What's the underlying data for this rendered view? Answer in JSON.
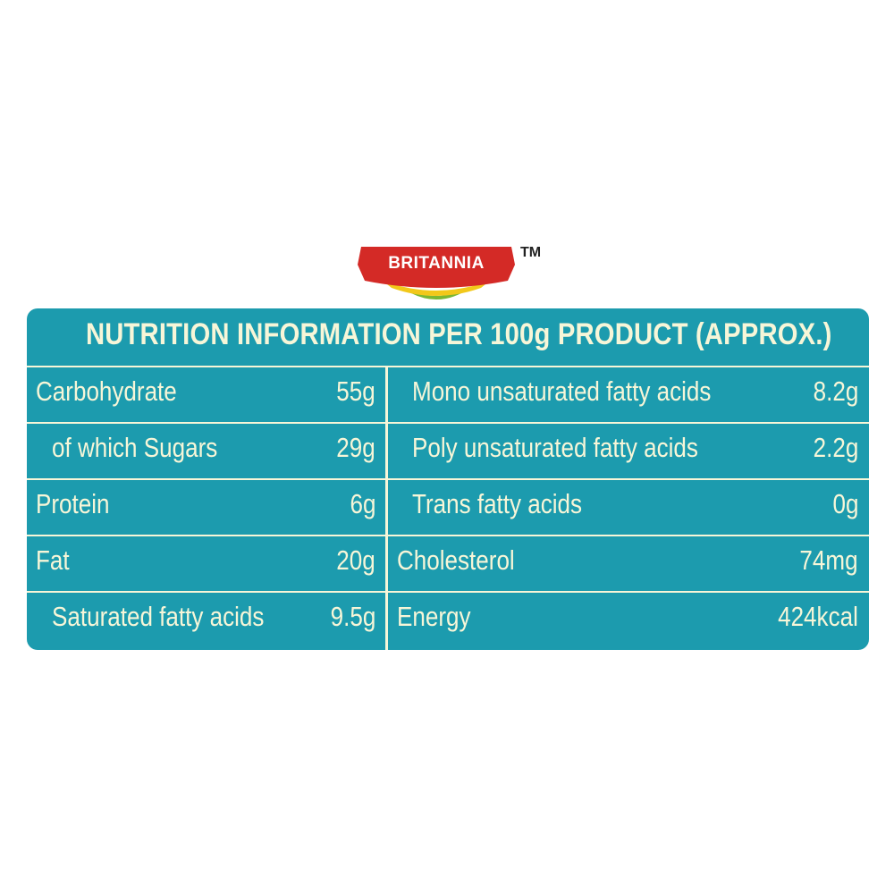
{
  "logo": {
    "brand": "BRITANNIA",
    "trademark": "TM"
  },
  "title": "NUTRITION INFORMATION PER 100g PRODUCT (APPROX.)",
  "left_rows": [
    {
      "label": "Carbohydrate",
      "value": "55g",
      "indent": false
    },
    {
      "label": "of which Sugars",
      "value": "29g",
      "indent": true
    },
    {
      "label": "Protein",
      "value": "6g",
      "indent": false
    },
    {
      "label": "Fat",
      "value": "20g",
      "indent": false
    },
    {
      "label": "Saturated fatty acids",
      "value": "9.5g",
      "indent": true
    }
  ],
  "right_rows": [
    {
      "label": "Mono unsaturated fatty acids",
      "value": "8.2g",
      "indent": true
    },
    {
      "label": "Poly unsaturated fatty acids",
      "value": "2.2g",
      "indent": true
    },
    {
      "label": "Trans fatty acids",
      "value": "0g",
      "indent": true
    },
    {
      "label": "Cholesterol",
      "value": "74mg",
      "indent": false
    },
    {
      "label": "Energy",
      "value": "424kcal",
      "indent": false
    }
  ],
  "colors": {
    "panel": "#1c9bae",
    "text": "#f7f6d8",
    "logo_red": "#d42a26",
    "logo_yellow": "#f2c81a",
    "logo_green": "#7ab733"
  }
}
